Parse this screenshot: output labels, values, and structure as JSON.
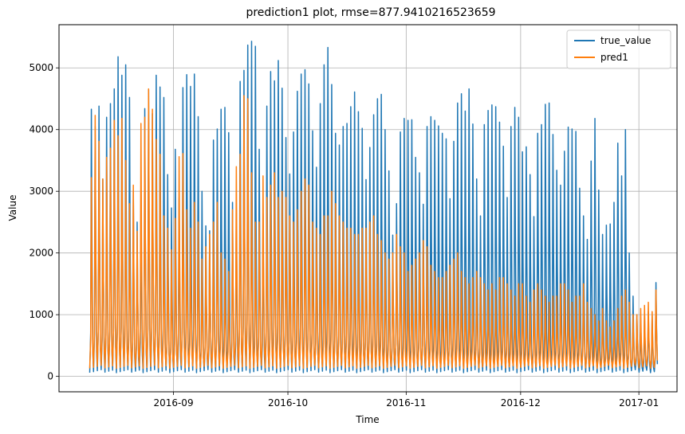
{
  "chart_data": {
    "type": "line",
    "title": "prediction1 plot, rmse=877.9410216523659",
    "xlabel": "Time",
    "ylabel": "Value",
    "x_start": "2016-08-10",
    "x_end": "2017-01-03",
    "xlim": [
      "2016-08-02",
      "2017-01-11"
    ],
    "ylim": [
      -250,
      5700
    ],
    "grid": true,
    "legend_position": "top-right",
    "x_ticks": [
      {
        "date": "2016-09-01",
        "label": "2016-09"
      },
      {
        "date": "2016-10-01",
        "label": "2016-10"
      },
      {
        "date": "2016-11-01",
        "label": "2016-11"
      },
      {
        "date": "2016-12-01",
        "label": "2016-12"
      },
      {
        "date": "2017-01-01",
        "label": "2017-01"
      }
    ],
    "y_ticks": [
      0,
      1000,
      2000,
      3000,
      4000,
      5000
    ],
    "daily_peaks_true": [
      4330,
      4050,
      4380,
      3200,
      4200,
      4420,
      4660,
      5180,
      4880,
      5050,
      4520,
      3000,
      2500,
      2960,
      4340,
      4650,
      4260,
      4880,
      4690,
      4520,
      3270,
      2730,
      3680,
      2890,
      4680,
      4890,
      4700,
      4900,
      4210,
      3000,
      2440,
      2360,
      3830,
      4010,
      4330,
      4360,
      3950,
      2820,
      2710,
      4780,
      4960,
      5370,
      5430,
      5350,
      3680,
      2640,
      4380,
      4940,
      4790,
      5120,
      4670,
      3870,
      3280,
      3960,
      4620,
      4900,
      4970,
      4740,
      3980,
      3390,
      4420,
      5050,
      5330,
      4730,
      3940,
      3750,
      4050,
      4100,
      4370,
      4610,
      4290,
      4020,
      3190,
      3710,
      4240,
      4500,
      4570,
      4000,
      3330,
      2290,
      2800,
      3960,
      4180,
      4150,
      4160,
      3550,
      3300,
      2790,
      4050,
      4210,
      4150,
      4060,
      3940,
      3850,
      2880,
      3810,
      4430,
      4580,
      4300,
      4660,
      4090,
      3200,
      2600,
      4080,
      4310,
      4400,
      4370,
      4120,
      3730,
      2900,
      4050,
      4360,
      4200,
      3640,
      3720,
      3270,
      2590,
      3940,
      4080,
      4410,
      4430,
      3920,
      3340,
      3100,
      3650,
      4040,
      4010,
      3970,
      3050,
      2600,
      2220,
      3490,
      4180,
      3020,
      2300,
      2450,
      2470,
      2820,
      3780,
      3250,
      4000,
      2000,
      1300,
      1000,
      900,
      1000,
      1050,
      1000,
      1520
    ],
    "daily_peaks_pred": [
      3220,
      4230,
      3810,
      3200,
      3550,
      3700,
      4150,
      3900,
      4180,
      3500,
      2800,
      3100,
      2350,
      4100,
      4200,
      4660,
      4330,
      3840,
      3600,
      2600,
      2400,
      2050,
      2560,
      3560,
      3610,
      2700,
      2400,
      2820,
      2500,
      1900,
      2100,
      2300,
      2500,
      2820,
      2000,
      1900,
      1700,
      2700,
      3400,
      3600,
      4550,
      4500,
      3300,
      2500,
      2500,
      3250,
      2900,
      3100,
      3300,
      2900,
      3000,
      2900,
      2600,
      2500,
      2700,
      3000,
      3200,
      3100,
      2500,
      2400,
      2300,
      2600,
      2600,
      3000,
      2800,
      2600,
      2500,
      2400,
      2400,
      2300,
      2300,
      2400,
      2400,
      2500,
      2600,
      2300,
      2200,
      2000,
      1900,
      2000,
      2300,
      2100,
      2000,
      1700,
      1800,
      1900,
      2000,
      2200,
      2100,
      1800,
      1700,
      1600,
      1600,
      1700,
      1800,
      1900,
      2000,
      1700,
      1600,
      1500,
      1600,
      1700,
      1600,
      1500,
      1400,
      1500,
      1400,
      1600,
      1600,
      1500,
      1400,
      1300,
      1500,
      1500,
      1300,
      1200,
      1400,
      1500,
      1400,
      1300,
      1200,
      1300,
      1300,
      1500,
      1500,
      1400,
      1200,
      1300,
      1300,
      1500,
      1200,
      1100,
      1000,
      900,
      1100,
      900,
      800,
      900,
      1100,
      1300,
      1400,
      1200,
      1000,
      1000,
      1100,
      1150,
      1200,
      1050,
      1400
    ],
    "series": [
      {
        "name": "true_value",
        "color": "#1f77b4",
        "night_min": 60
      },
      {
        "name": "pred1",
        "color": "#ff7f0e",
        "night_min": 130
      }
    ]
  }
}
